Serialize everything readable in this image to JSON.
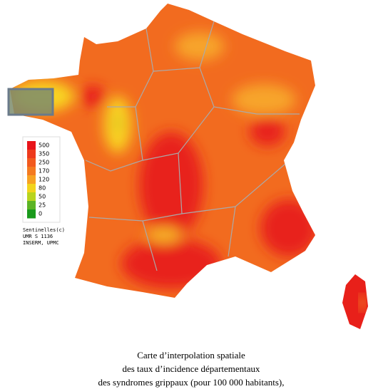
{
  "legend": {
    "values": [
      500,
      350,
      250,
      170,
      120,
      80,
      50,
      25,
      0
    ],
    "colors": [
      "#e8141a",
      "#ee3a1c",
      "#f25a1e",
      "#f47a20",
      "#f7a222",
      "#f2d41c",
      "#b8d41e",
      "#5cb424",
      "#1a9a1c"
    ]
  },
  "credit": [
    "Sentinelles(c)",
    "UMR S 1136",
    "INSERM, UPMC"
  ],
  "caption": [
    "Carte d’interpolation spatiale",
    "des taux d’incidence départementaux",
    "des syndromes grippaux (pour 100 000 habitants),"
  ]
}
